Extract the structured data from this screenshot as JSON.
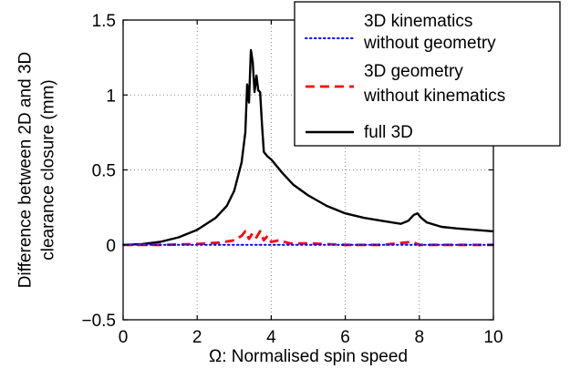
{
  "chart_data": {
    "type": "line",
    "title": "",
    "xlabel": "Ω: Normalised spin speed",
    "ylabel_lines": [
      "Difference between 2D and 3D",
      "clearance closure (mm)"
    ],
    "xlim": [
      0,
      10
    ],
    "ylim": [
      -0.5,
      1.5
    ],
    "xticks": [
      0,
      2,
      4,
      6,
      8,
      10
    ],
    "xtick_labels": [
      "0",
      "2",
      "4",
      "6",
      "8",
      "10"
    ],
    "yticks": [
      -0.5,
      0,
      0.5,
      1,
      1.5
    ],
    "ytick_labels": [
      "−0.5",
      "0",
      "0.5",
      "1",
      "1.5"
    ],
    "grid": true,
    "legend_position": "top-right",
    "series": [
      {
        "name": "3D kinematics without geometry",
        "legend_lines": [
          "3D kinematics",
          "without geometry"
        ],
        "color": "#0000ff",
        "style": "dotted",
        "x": [
          0,
          1,
          2,
          3,
          4,
          5,
          6,
          7,
          8,
          9,
          10
        ],
        "y": [
          0,
          0,
          0,
          0,
          0,
          0,
          0,
          0,
          0,
          0,
          0
        ]
      },
      {
        "name": "3D geometry without kinematics",
        "legend_lines": [
          "3D geometry",
          "without kinematics"
        ],
        "color": "#ff0000",
        "style": "dashed",
        "x": [
          0,
          1.0,
          2.0,
          2.6,
          3.0,
          3.2,
          3.3,
          3.4,
          3.5,
          3.6,
          3.7,
          3.8,
          3.9,
          4.0,
          4.2,
          4.5,
          5.0,
          6.0,
          7.0,
          7.8,
          7.9,
          8.0,
          8.2,
          9.0,
          10.0
        ],
        "y": [
          0,
          0,
          0.005,
          0.015,
          0.03,
          0.06,
          0.09,
          0.04,
          0.08,
          0.05,
          0.09,
          0.03,
          0.06,
          0.02,
          0.03,
          0.01,
          0.01,
          0.0,
          0.0,
          0.02,
          0.01,
          0.0,
          0.0,
          0.0,
          0.0
        ]
      },
      {
        "name": "full 3D",
        "legend_lines": [
          "full 3D"
        ],
        "color": "#000000",
        "style": "solid",
        "x": [
          0,
          0.5,
          1.0,
          1.5,
          2.0,
          2.5,
          2.8,
          3.0,
          3.2,
          3.3,
          3.35,
          3.4,
          3.45,
          3.5,
          3.55,
          3.6,
          3.65,
          3.7,
          3.75,
          3.8,
          3.9,
          4.0,
          4.3,
          4.6,
          5.0,
          5.5,
          6.0,
          6.5,
          7.0,
          7.5,
          7.7,
          7.85,
          7.95,
          8.05,
          8.2,
          8.6,
          9.0,
          9.5,
          10.0
        ],
        "y": [
          0,
          0.005,
          0.02,
          0.05,
          0.1,
          0.18,
          0.26,
          0.36,
          0.55,
          0.75,
          1.07,
          0.95,
          1.3,
          1.22,
          1.02,
          1.13,
          1.03,
          1.02,
          0.8,
          0.62,
          0.59,
          0.57,
          0.48,
          0.4,
          0.33,
          0.26,
          0.21,
          0.18,
          0.16,
          0.14,
          0.16,
          0.2,
          0.21,
          0.18,
          0.15,
          0.12,
          0.11,
          0.1,
          0.09
        ]
      }
    ]
  }
}
